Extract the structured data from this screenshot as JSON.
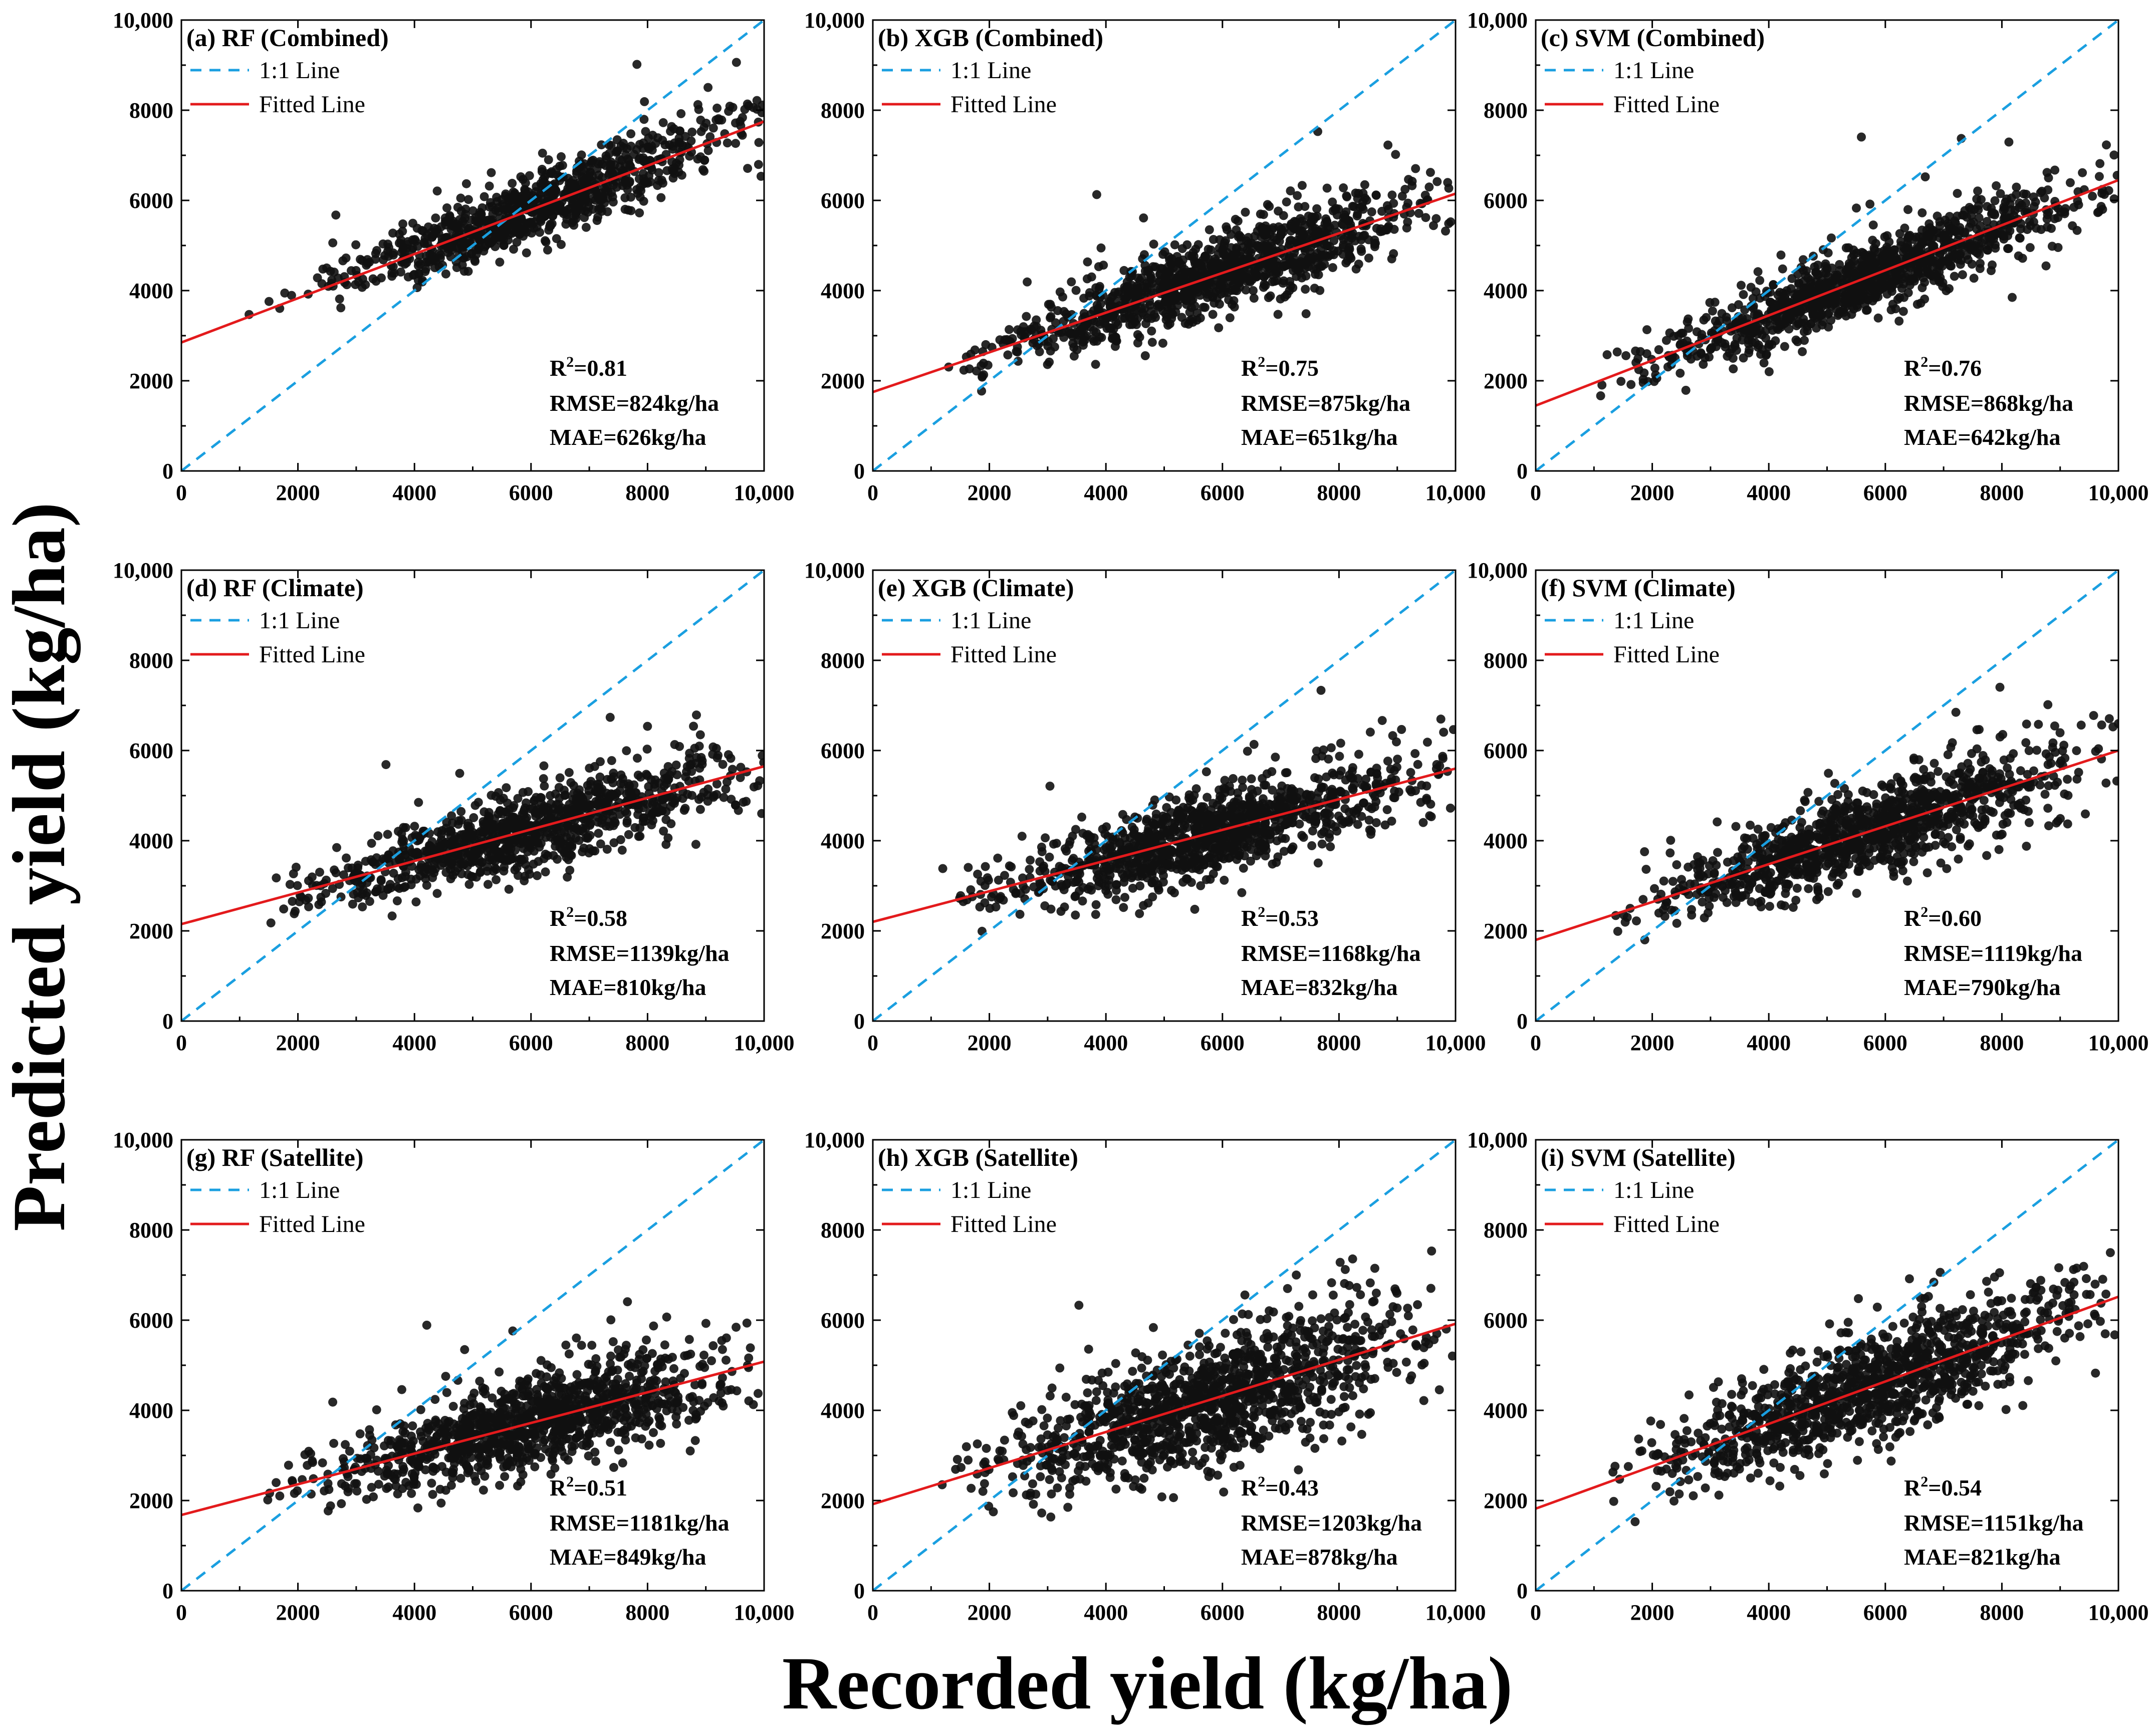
{
  "chart_data": {
    "type": "scatter",
    "xlabel": "Recorded yield (kg/ha)",
    "ylabel": "Predicted yield (kg/ha)",
    "xlim": [
      0,
      10000
    ],
    "ylim": [
      0,
      10000
    ],
    "x_ticks": [
      "0",
      "2000",
      "4000",
      "6000",
      "8000",
      "10,000"
    ],
    "y_ticks": [
      "0",
      "2000",
      "4000",
      "6000",
      "8000",
      "10,000"
    ],
    "legend": {
      "identity": "1:1 Line",
      "fit": "Fitted Line",
      "placement": "top-left"
    },
    "colors": {
      "points": "#111111",
      "identity_line": "#1a9fe0",
      "fit_line": "#e31a1c"
    },
    "panels": [
      {
        "title": "(a) RF (Combined)",
        "r2": "0.81",
        "rmse": "RMSE=824kg/ha",
        "mae": "MAE=626kg/ha",
        "fit": {
          "intercept": 2850,
          "slope": 0.49
        },
        "cloud": {
          "x_center": 6000,
          "x_spread": 1700,
          "x_min": 1100,
          "x_max": 10000,
          "noise": 380,
          "count": 900,
          "seed": 11
        }
      },
      {
        "title": "(b) XGB (Combined)",
        "r2": "0.75",
        "rmse": "RMSE=875kg/ha",
        "mae": "MAE=651kg/ha",
        "fit": {
          "intercept": 1750,
          "slope": 0.44
        },
        "cloud": {
          "x_center": 5800,
          "x_spread": 1800,
          "x_min": 1200,
          "x_max": 10000,
          "noise": 420,
          "count": 1100,
          "seed": 23
        }
      },
      {
        "title": "(c) SVM (Combined)",
        "r2": "0.76",
        "rmse": "RMSE=868kg/ha",
        "mae": "MAE=642kg/ha",
        "fit": {
          "intercept": 1450,
          "slope": 0.5
        },
        "cloud": {
          "x_center": 5800,
          "x_spread": 1800,
          "x_min": 1100,
          "x_max": 10000,
          "noise": 420,
          "count": 1100,
          "seed": 37
        }
      },
      {
        "title": "(d) RF (Climate)",
        "r2": "0.58",
        "rmse": "RMSE=1139kg/ha",
        "mae": "MAE=810kg/ha",
        "fit": {
          "intercept": 2150,
          "slope": 0.35
        },
        "cloud": {
          "x_center": 6000,
          "x_spread": 1800,
          "x_min": 1100,
          "x_max": 10000,
          "noise": 430,
          "count": 1000,
          "seed": 41
        }
      },
      {
        "title": "(e) XGB (Climate)",
        "r2": "0.53",
        "rmse": "RMSE=1168kg/ha",
        "mae": "MAE=832kg/ha",
        "fit": {
          "intercept": 2200,
          "slope": 0.34
        },
        "cloud": {
          "x_center": 5800,
          "x_spread": 1800,
          "x_min": 1200,
          "x_max": 10000,
          "noise": 480,
          "count": 1100,
          "seed": 53
        }
      },
      {
        "title": "(f) SVM (Climate)",
        "r2": "0.60",
        "rmse": "RMSE=1119kg/ha",
        "mae": "MAE=790kg/ha",
        "fit": {
          "intercept": 1800,
          "slope": 0.42
        },
        "cloud": {
          "x_center": 5800,
          "x_spread": 1800,
          "x_min": 1100,
          "x_max": 10000,
          "noise": 500,
          "count": 1100,
          "seed": 67
        }
      },
      {
        "title": "(g) RF (Satellite)",
        "r2": "0.51",
        "rmse": "RMSE=1181kg/ha",
        "mae": "MAE=849kg/ha",
        "fit": {
          "intercept": 1680,
          "slope": 0.34
        },
        "cloud": {
          "x_center": 6000,
          "x_spread": 1700,
          "x_min": 1200,
          "x_max": 10000,
          "noise": 520,
          "count": 1100,
          "seed": 71
        }
      },
      {
        "title": "(h) XGB (Satellite)",
        "r2": "0.43",
        "rmse": "RMSE=1203kg/ha",
        "mae": "MAE=878kg/ha",
        "fit": {
          "intercept": 1920,
          "slope": 0.4
        },
        "cloud": {
          "x_center": 5800,
          "x_spread": 1800,
          "x_min": 1100,
          "x_max": 10000,
          "noise": 700,
          "count": 1200,
          "seed": 83
        }
      },
      {
        "title": "(i) SVM (Satellite)",
        "r2": "0.54",
        "rmse": "RMSE=1151kg/ha",
        "mae": "MAE=821kg/ha",
        "fit": {
          "intercept": 1820,
          "slope": 0.47
        },
        "cloud": {
          "x_center": 5800,
          "x_spread": 1800,
          "x_min": 1100,
          "x_max": 10000,
          "noise": 620,
          "count": 1100,
          "seed": 97
        }
      }
    ]
  }
}
